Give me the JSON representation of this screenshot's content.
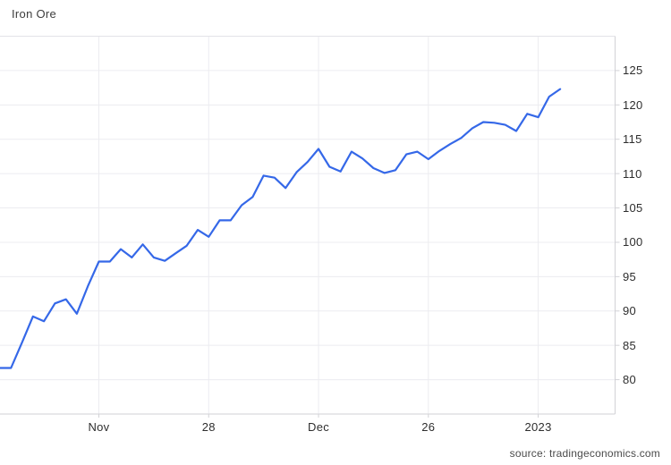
{
  "source": {
    "label": "source: tradingeconomics.com"
  },
  "chart_data": {
    "type": "line",
    "title": "Iron Ore",
    "xlabel": "",
    "ylabel": "",
    "legend": "none",
    "grid": "both",
    "x_tick_labels": [
      "Nov",
      "28",
      "Dec",
      "26",
      "2023"
    ],
    "x_tick_indices": [
      9,
      19,
      29,
      39,
      49
    ],
    "x_index_range": [
      0,
      56
    ],
    "y_ticks": [
      80,
      85,
      90,
      95,
      100,
      105,
      110,
      115,
      120,
      125
    ],
    "ylim": [
      75,
      130
    ],
    "series": [
      {
        "name": "Iron Ore",
        "color": "#3568e8",
        "values": [
          81.7,
          81.7,
          85.4,
          89.2,
          88.5,
          91.1,
          91.7,
          89.6,
          93.6,
          97.2,
          97.2,
          99.0,
          97.8,
          99.7,
          97.8,
          97.3,
          98.4,
          99.5,
          101.8,
          100.8,
          103.2,
          103.2,
          105.4,
          106.6,
          109.7,
          109.4,
          107.9,
          110.2,
          111.7,
          113.6,
          111.0,
          110.3,
          113.2,
          112.2,
          110.8,
          110.1,
          110.5,
          112.8,
          113.2,
          112.1,
          113.3,
          114.3,
          115.2,
          116.6,
          117.5,
          117.4,
          117.1,
          116.2,
          118.7,
          118.2,
          121.2,
          122.3
        ]
      }
    ],
    "colors": {
      "line": "#3568e8",
      "grid": "#ececf0",
      "axis": "#d2d2d6",
      "top_border": "#e3e3e8",
      "labels": "#2e2e2e",
      "title": "#3d3d3d",
      "source": "#4a4a4a",
      "background": "#ffffff"
    }
  }
}
